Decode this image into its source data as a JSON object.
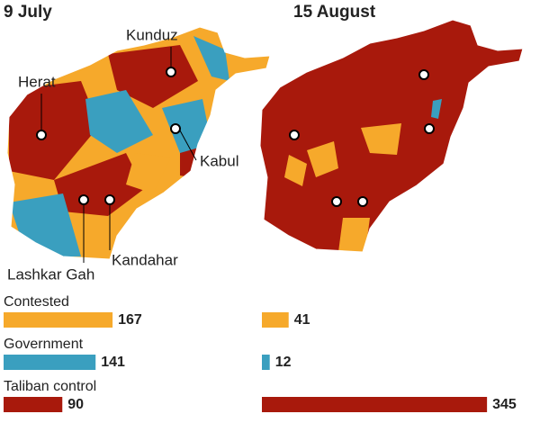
{
  "map_labels": [
    "Kunduz",
    "Herat",
    "Kabul",
    "Lashkar Gah",
    "Kandahar"
  ],
  "bars": {
    "categories": [
      "Contested",
      "Government",
      "Taliban control"
    ],
    "colors": [
      "#f6a92b",
      "#3a9fbf",
      "#a8190c"
    ],
    "series": [
      {
        "name": "9 July",
        "values": [
          167,
          141,
          90
        ]
      },
      {
        "name": "15 August",
        "values": [
          41,
          12,
          345
        ]
      }
    ]
  }
}
